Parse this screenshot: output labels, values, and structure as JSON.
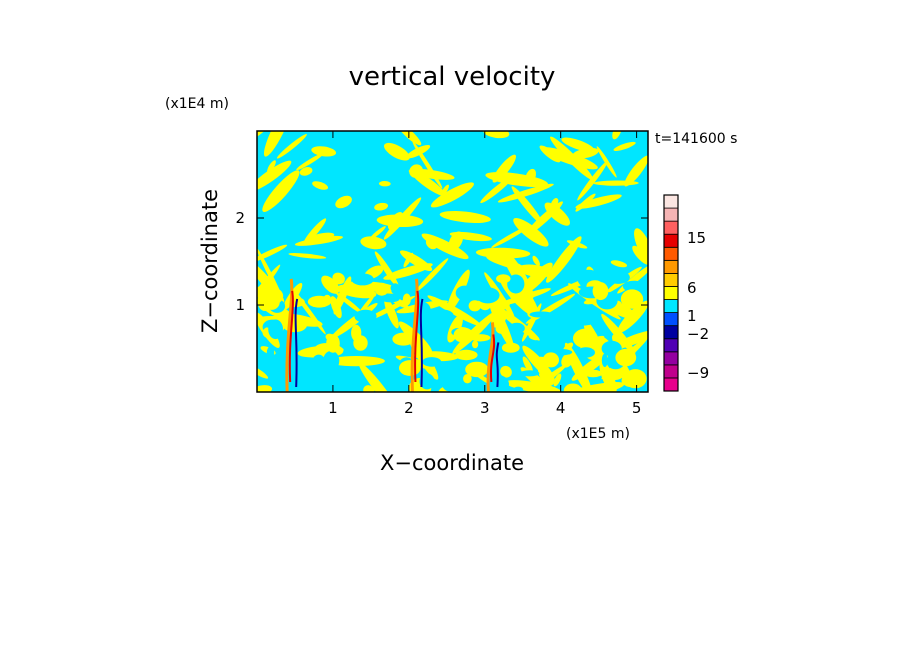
{
  "chart_data": {
    "type": "heatmap",
    "title": "vertical velocity",
    "xlabel": "X−coordinate",
    "ylabel": "Z−coordinate",
    "x_unit": "(x1E5 m)",
    "y_unit": "(x1E4 m)",
    "time_label": "t=141600 s",
    "xlim": [
      0,
      5.15
    ],
    "ylim": [
      0,
      3.0
    ],
    "x_ticks": [
      "1",
      "2",
      "3",
      "4",
      "5"
    ],
    "x_tick_values": [
      1,
      2,
      3,
      4,
      5
    ],
    "y_ticks": [
      "1",
      "2"
    ],
    "y_tick_values": [
      1,
      2
    ],
    "colorbar": {
      "colors": [
        "#e8008c",
        "#c0008c",
        "#9400a0",
        "#5000b4",
        "#0000a0",
        "#0050ff",
        "#00e6ff",
        "#ffff00",
        "#ffcc00",
        "#ff9900",
        "#ff5a00",
        "#e60000",
        "#ff6060",
        "#f5b4b4",
        "#fbe6e2"
      ],
      "tick_labels": [
        "−9",
        "−2",
        "1",
        "6",
        "15"
      ],
      "tick_levels": [
        -9,
        -2,
        1,
        6,
        15
      ]
    },
    "features": [
      {
        "x": 0.45,
        "z_top": 1.3,
        "note": "narrow updraft column"
      },
      {
        "x": 2.1,
        "z_top": 1.3,
        "note": "narrow updraft column"
      },
      {
        "x": 3.1,
        "z_top": 0.8,
        "note": "narrow updraft column"
      }
    ]
  }
}
